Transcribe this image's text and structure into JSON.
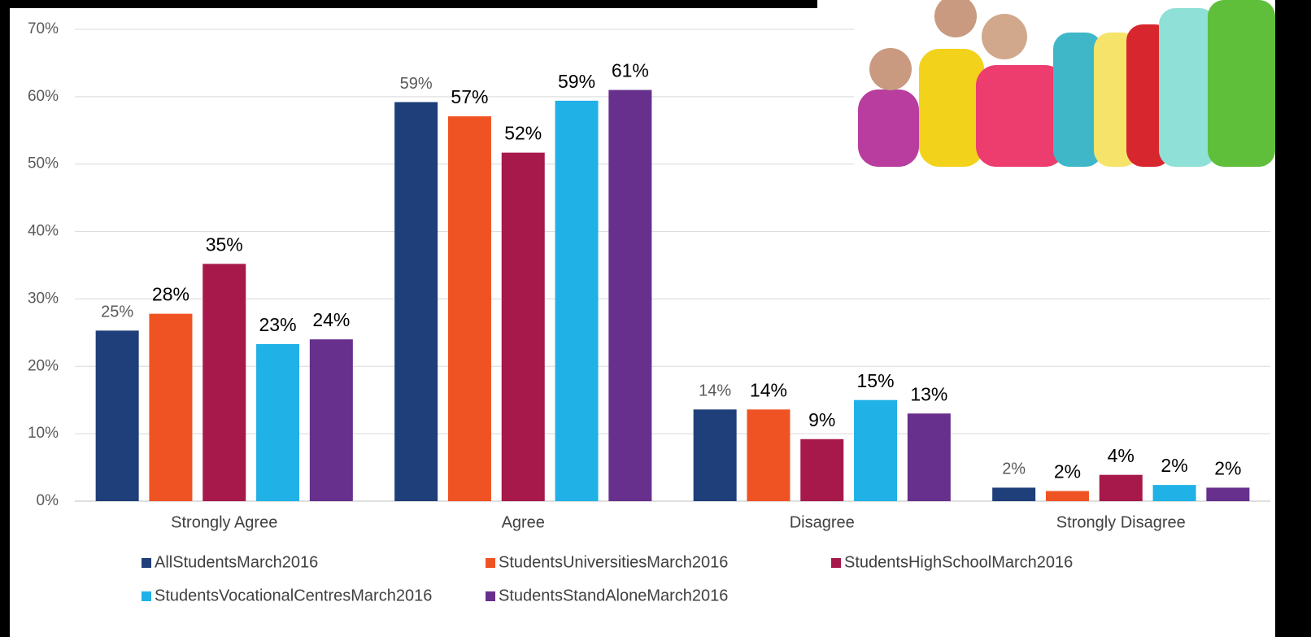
{
  "chart_data": {
    "type": "bar",
    "categories": [
      "Strongly Agree",
      "Agree",
      "Disagree",
      "Strongly Disagree"
    ],
    "series": [
      {
        "name": "AllStudentsMarch2016",
        "color": "#1f3f7a",
        "values": [
          25.3,
          59.2,
          13.6,
          2.0
        ],
        "value_labels": [
          "25%",
          "59%",
          "14%",
          "2%"
        ]
      },
      {
        "name": "StudentsUniversitiesMarch2016",
        "color": "#f05323",
        "values": [
          27.8,
          57.1,
          13.6,
          1.5
        ],
        "value_labels": [
          "28%",
          "57%",
          "14%",
          "2%"
        ]
      },
      {
        "name": "StudentsHighSchoolMarch2016",
        "color": "#a6194a",
        "values": [
          35.2,
          51.7,
          9.2,
          3.9
        ],
        "value_labels": [
          "35%",
          "52%",
          "9%",
          "4%"
        ]
      },
      {
        "name": "StudentsVocationalCentresMarch2016",
        "color": "#20b1e6",
        "values": [
          23.3,
          59.4,
          15.0,
          2.4
        ],
        "value_labels": [
          "23%",
          "59%",
          "15%",
          "2%"
        ]
      },
      {
        "name": "StudentsStandAloneMarch2016",
        "color": "#66308c",
        "values": [
          24.0,
          61.0,
          13.0,
          2.0
        ],
        "value_labels": [
          "24%",
          "61%",
          "13%",
          "2%"
        ]
      }
    ],
    "ylim": [
      0,
      70
    ],
    "yticks": [
      {
        "value": 0,
        "label": "0%"
      },
      {
        "value": 10,
        "label": "10%"
      },
      {
        "value": 20,
        "label": "20%"
      },
      {
        "value": 30,
        "label": "30%"
      },
      {
        "value": 40,
        "label": "40%"
      },
      {
        "value": 50,
        "label": "50%"
      },
      {
        "value": 60,
        "label": "60%"
      },
      {
        "value": 70,
        "label": "70%"
      }
    ],
    "grid": true,
    "legend": "bottom"
  }
}
